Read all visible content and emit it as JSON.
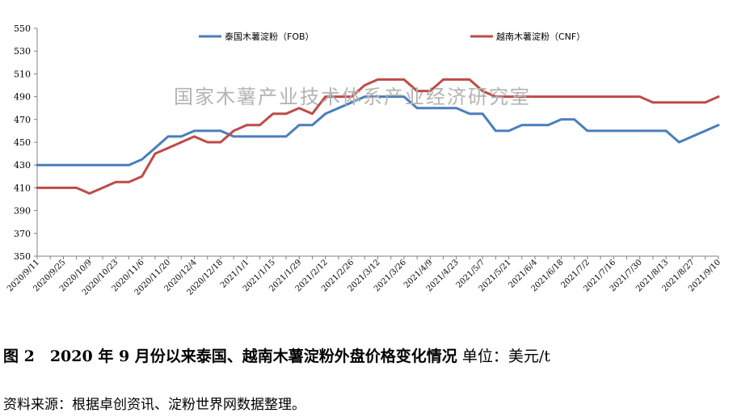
{
  "chart_data": {
    "type": "line",
    "x": [
      "2020/9/11",
      "2020/9/18",
      "2020/9/25",
      "2020/10/2",
      "2020/10/9",
      "2020/10/16",
      "2020/10/23",
      "2020/10/30",
      "2020/11/6",
      "2020/11/13",
      "2020/11/20",
      "2020/11/27",
      "2020/12/4",
      "2020/12/11",
      "2020/12/18",
      "2020/12/25",
      "2021/1/1",
      "2021/1/8",
      "2021/1/15",
      "2021/1/22",
      "2021/1/29",
      "2021/2/5",
      "2021/2/12",
      "2021/2/19",
      "2021/2/26",
      "2021/3/5",
      "2021/3/12",
      "2021/3/19",
      "2021/3/26",
      "2021/4/2",
      "2021/4/9",
      "2021/4/16",
      "2021/4/23",
      "2021/4/30",
      "2021/5/7",
      "2021/5/14",
      "2021/5/21",
      "2021/5/28",
      "2021/6/4",
      "2021/6/11",
      "2021/6/18",
      "2021/6/25",
      "2021/7/2",
      "2021/7/9",
      "2021/7/16",
      "2021/7/23",
      "2021/7/30",
      "2021/8/6",
      "2021/8/13",
      "2021/8/20",
      "2021/8/27",
      "2021/9/3",
      "2021/9/10"
    ],
    "tick_labels": [
      "2020/9/11",
      "2020/9/25",
      "2020/10/9",
      "2020/10/23",
      "2020/11/6",
      "2020/11/20",
      "2020/12/4",
      "2020/12/18",
      "2021/1/1",
      "2021/1/15",
      "2021/1/29",
      "2021/2/12",
      "2021/2/26",
      "2021/3/12",
      "2021/3/26",
      "2021/4/9",
      "2021/4/23",
      "2021/5/7",
      "2021/5/21",
      "2021/6/4",
      "2021/6/18",
      "2021/7/2",
      "2021/7/16",
      "2021/7/30",
      "2021/8/13",
      "2021/8/27",
      "2021/9/10"
    ],
    "series": [
      {
        "name": "泰国木薯淀粉（FOB）",
        "color": "#4a7ebb",
        "values": [
          430,
          430,
          430,
          430,
          430,
          430,
          430,
          430,
          435,
          445,
          455,
          455,
          460,
          460,
          460,
          455,
          455,
          455,
          455,
          455,
          465,
          465,
          475,
          480,
          485,
          490,
          490,
          490,
          490,
          480,
          480,
          480,
          480,
          475,
          475,
          460,
          460,
          465,
          465,
          465,
          470,
          470,
          460,
          460,
          460,
          460,
          460,
          460,
          460,
          450,
          455,
          460,
          465
        ]
      },
      {
        "name": "越南木薯淀粉（CNF）",
        "color": "#be4b48",
        "values": [
          410,
          410,
          410,
          410,
          405,
          410,
          415,
          415,
          420,
          440,
          445,
          450,
          455,
          450,
          450,
          460,
          465,
          465,
          475,
          475,
          480,
          475,
          490,
          490,
          490,
          500,
          505,
          505,
          505,
          495,
          495,
          505,
          505,
          505,
          495,
          490,
          490,
          490,
          490,
          490,
          490,
          490,
          490,
          490,
          490,
          490,
          490,
          485,
          485,
          485,
          485,
          485,
          490
        ]
      }
    ],
    "ylim": [
      350,
      550
    ],
    "yticks": [
      350,
      370,
      390,
      410,
      430,
      450,
      470,
      490,
      510,
      530,
      550
    ],
    "legend": "top"
  },
  "watermark": "国家木薯产业技术体系产业经济研究室",
  "caption": {
    "figure": "图 2　2020 年 9 月份以来泰国、越南木薯淀粉外盘价格变化情况",
    "unit": "单位：美元/t"
  },
  "source": "资料来源：根据卓创资讯、淀粉世界网数据整理。"
}
